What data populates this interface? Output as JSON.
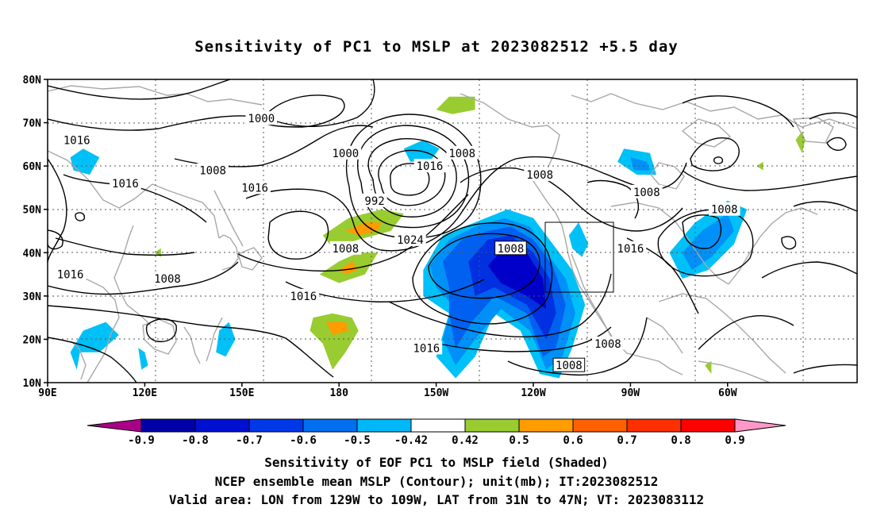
{
  "title": "Sensitivity of PC1 to MSLP at 2023082512 +5.5 day",
  "lat_labels": [
    "80N",
    "70N",
    "60N",
    "50N",
    "40N",
    "30N",
    "20N",
    "10N"
  ],
  "lon_labels": [
    "90E",
    "120E",
    "150E",
    "180",
    "150W",
    "120W",
    "90W",
    "60W"
  ],
  "contour_labels": [
    {
      "text": "1000",
      "lon": 156,
      "lat": 71,
      "box": false
    },
    {
      "text": "1016",
      "lon": 99,
      "lat": 66,
      "box": false
    },
    {
      "text": "1000",
      "lon": 182,
      "lat": 63,
      "box": false
    },
    {
      "text": "1008",
      "lon": 141,
      "lat": 59,
      "box": false
    },
    {
      "text": "1016",
      "lon": 114,
      "lat": 56,
      "box": false
    },
    {
      "text": "1016",
      "lon": 154,
      "lat": 55,
      "box": false
    },
    {
      "text": "992",
      "lon": 191,
      "lat": 52,
      "box": false
    },
    {
      "text": "1008",
      "lon": 218,
      "lat": 63,
      "box": false
    },
    {
      "text": "1016",
      "lon": 208,
      "lat": 60,
      "box": false
    },
    {
      "text": "1008",
      "lon": 242,
      "lat": 58,
      "box": false
    },
    {
      "text": "1008",
      "lon": 275,
      "lat": 54,
      "box": false
    },
    {
      "text": "1008",
      "lon": 299,
      "lat": 50,
      "box": false
    },
    {
      "text": "1024",
      "lon": 202,
      "lat": 43,
      "box": false
    },
    {
      "text": "1008",
      "lon": 233,
      "lat": 41,
      "box": true
    },
    {
      "text": "1008",
      "lon": 182,
      "lat": 41,
      "box": false
    },
    {
      "text": "1016",
      "lon": 270,
      "lat": 41,
      "box": false
    },
    {
      "text": "1016",
      "lon": 97,
      "lat": 35,
      "box": false
    },
    {
      "text": "1008",
      "lon": 127,
      "lat": 34,
      "box": false
    },
    {
      "text": "1016",
      "lon": 169,
      "lat": 30,
      "box": false
    },
    {
      "text": "1008",
      "lon": 263,
      "lat": 19,
      "box": false
    },
    {
      "text": "1016",
      "lon": 207,
      "lat": 18,
      "box": false
    },
    {
      "text": "1008",
      "lon": 251,
      "lat": 14,
      "box": true
    }
  ],
  "colorbar": {
    "labels": [
      "-0.9",
      "-0.8",
      "-0.7",
      "-0.6",
      "-0.5",
      "-0.42",
      "0.42",
      "0.5",
      "0.6",
      "0.7",
      "0.8",
      "0.9"
    ],
    "colors": [
      "#aa0088",
      "#0000a8",
      "#0010d0",
      "#0038e8",
      "#0070f0",
      "#00b8f8",
      "#ffffff",
      "#98cc30",
      "#ff9c00",
      "#ff6000",
      "#ff3000",
      "#ff0000",
      "#ff98c8"
    ]
  },
  "shading_colors": {
    "neg_1": "#00c0f8",
    "neg_2": "#0090f8",
    "neg_3": "#0060f0",
    "neg_4": "#0030e0",
    "neg_5": "#0000c8",
    "pos_1": "#98cc30",
    "pos_2": "#ff9c00"
  },
  "caption_lines": [
    "Sensitivity of EOF PC1 to MSLP field (Shaded)",
    "NCEP ensemble mean MSLP (Contour); unit(mb); IT:2023082512",
    "Valid area: LON from 129W to 109W, LAT from 31N to 47N; VT: 2023083112"
  ],
  "valid_area": {
    "lon_min": 231,
    "lon_max": 251,
    "lat_min": 31,
    "lat_max": 47
  }
}
